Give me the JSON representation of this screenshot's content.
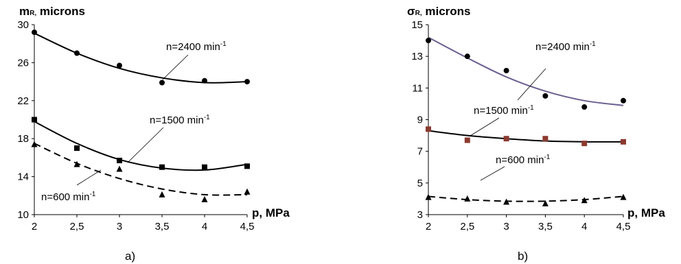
{
  "chart_data": [
    {
      "id": "a",
      "type": "scatter",
      "caption": "a)",
      "ylabel": "m",
      "ylabel_sub": "R,",
      "ylabel_rest": " microns",
      "xlabel": "p, MPa",
      "xlim": [
        2,
        4.5
      ],
      "ylim": [
        10,
        30
      ],
      "xticks": [
        "2",
        "2,5",
        "3",
        "3,5",
        "4",
        "4,5"
      ],
      "xtick_values": [
        2,
        2.5,
        3,
        3.5,
        4,
        4.5
      ],
      "yticks": [
        "10",
        "14",
        "18",
        "22",
        "26",
        "30"
      ],
      "ytick_values": [
        10,
        14,
        18,
        22,
        26,
        30
      ],
      "grid": false,
      "series": [
        {
          "annotation": "n=2400 min",
          "annotation_sup": "-1",
          "marker": "circle",
          "line_style": "solid",
          "line_color": "#000000",
          "marker_color": "#000000",
          "x": [
            2,
            2.5,
            3,
            3.5,
            4,
            4.5
          ],
          "y": [
            29.2,
            27.0,
            25.7,
            23.9,
            24.1,
            24.0
          ],
          "fit": [
            [
              2,
              29.1
            ],
            [
              2.5,
              27.0
            ],
            [
              3,
              25.4
            ],
            [
              3.5,
              24.4
            ],
            [
              4,
              23.9
            ],
            [
              4.5,
              24.0
            ]
          ]
        },
        {
          "annotation": "n=1500 min",
          "annotation_sup": "-1",
          "marker": "square",
          "line_style": "solid",
          "line_color": "#000000",
          "marker_color": "#000000",
          "x": [
            2,
            2.5,
            3,
            3.5,
            4,
            4.5
          ],
          "y": [
            20.0,
            17.0,
            15.7,
            15.0,
            15.0,
            15.1
          ],
          "fit": [
            [
              2,
              19.8
            ],
            [
              2.5,
              17.5
            ],
            [
              3,
              15.8
            ],
            [
              3.5,
              14.9
            ],
            [
              4,
              14.7
            ],
            [
              4.5,
              15.3
            ]
          ]
        },
        {
          "annotation": "n=600 min",
          "annotation_sup": "-1",
          "marker": "triangle",
          "line_style": "dashed",
          "line_color": "#000000",
          "marker_color": "#000000",
          "x": [
            2,
            2.5,
            3,
            3.5,
            4,
            4.5
          ],
          "y": [
            17.4,
            15.3,
            14.8,
            12.1,
            11.6,
            12.4
          ],
          "fit": [
            [
              2,
              17.5
            ],
            [
              2.5,
              15.4
            ],
            [
              3,
              13.8
            ],
            [
              3.5,
              12.7
            ],
            [
              4,
              12.1
            ],
            [
              4.5,
              12.1
            ]
          ]
        }
      ]
    },
    {
      "id": "b",
      "type": "scatter",
      "caption": "b)",
      "ylabel": "σ",
      "ylabel_sub": "R,",
      "ylabel_rest": " microns",
      "xlabel": "p, MPa",
      "xlim": [
        2,
        4.5
      ],
      "ylim": [
        3,
        15
      ],
      "xticks": [
        "2",
        "2,5",
        "3",
        "3,5",
        "4",
        "4,5"
      ],
      "xtick_values": [
        2,
        2.5,
        3,
        3.5,
        4,
        4.5
      ],
      "yticks": [
        "3",
        "5",
        "7",
        "9",
        "11",
        "13",
        "15"
      ],
      "ytick_values": [
        3,
        5,
        7,
        9,
        11,
        13,
        15
      ],
      "grid": false,
      "series": [
        {
          "annotation": "n=2400 min",
          "annotation_sup": "-1",
          "marker": "circle",
          "line_style": "solid",
          "line_color": "#6b5e8e",
          "marker_color": "#000000",
          "x": [
            2,
            2.5,
            3,
            3.5,
            4,
            4.5
          ],
          "y": [
            14.0,
            13.0,
            12.1,
            10.5,
            9.8,
            10.2
          ],
          "fit": [
            [
              2,
              14.2
            ],
            [
              2.5,
              12.9
            ],
            [
              3,
              11.7
            ],
            [
              3.5,
              10.8
            ],
            [
              4,
              10.2
            ],
            [
              4.5,
              9.9
            ]
          ]
        },
        {
          "annotation": "n=1500 min",
          "annotation_sup": "-1",
          "marker": "square",
          "line_style": "solid",
          "line_color": "#000000",
          "marker_color": "#8b3a2f",
          "x": [
            2,
            2.5,
            3,
            3.5,
            4,
            4.5
          ],
          "y": [
            8.4,
            7.7,
            7.8,
            7.8,
            7.5,
            7.6
          ],
          "fit": [
            [
              2,
              8.3
            ],
            [
              2.5,
              8.0
            ],
            [
              3,
              7.8
            ],
            [
              3.5,
              7.65
            ],
            [
              4,
              7.6
            ],
            [
              4.5,
              7.6
            ]
          ]
        },
        {
          "annotation": "n=600 min",
          "annotation_sup": "-1",
          "marker": "triangle",
          "line_style": "dashed",
          "line_color": "#000000",
          "marker_color": "#000000",
          "x": [
            2,
            2.5,
            3,
            3.5,
            4,
            4.5
          ],
          "y": [
            4.1,
            4.0,
            3.8,
            3.7,
            3.9,
            4.1
          ],
          "fit": [
            [
              2,
              4.15
            ],
            [
              2.5,
              3.95
            ],
            [
              3,
              3.85
            ],
            [
              3.5,
              3.85
            ],
            [
              4,
              3.95
            ],
            [
              4.5,
              4.15
            ]
          ]
        }
      ]
    }
  ]
}
